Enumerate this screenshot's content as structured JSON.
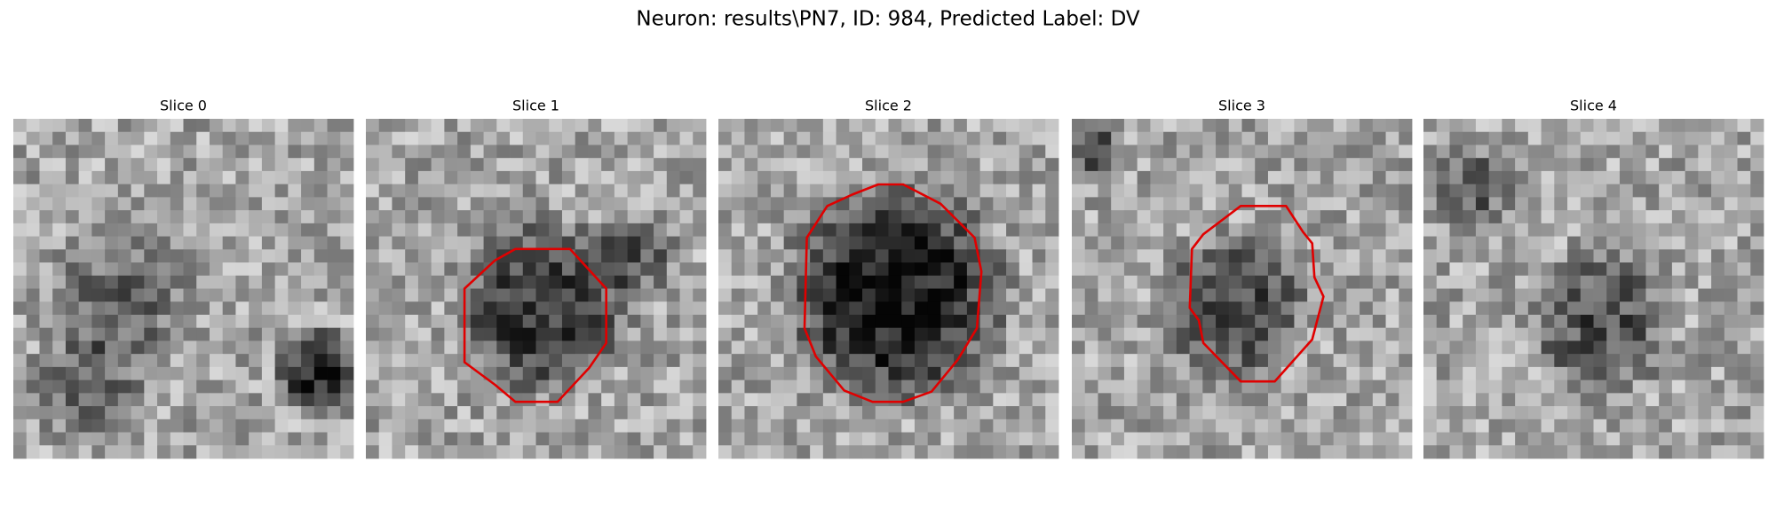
{
  "title": "Neuron: results\\PN7, ID: 984, Predicted Label: DV",
  "panels": [
    {
      "title": "Slice 0"
    },
    {
      "title": "Slice 1"
    },
    {
      "title": "Slice 2"
    },
    {
      "title": "Slice 3"
    },
    {
      "title": "Slice 4"
    }
  ]
}
